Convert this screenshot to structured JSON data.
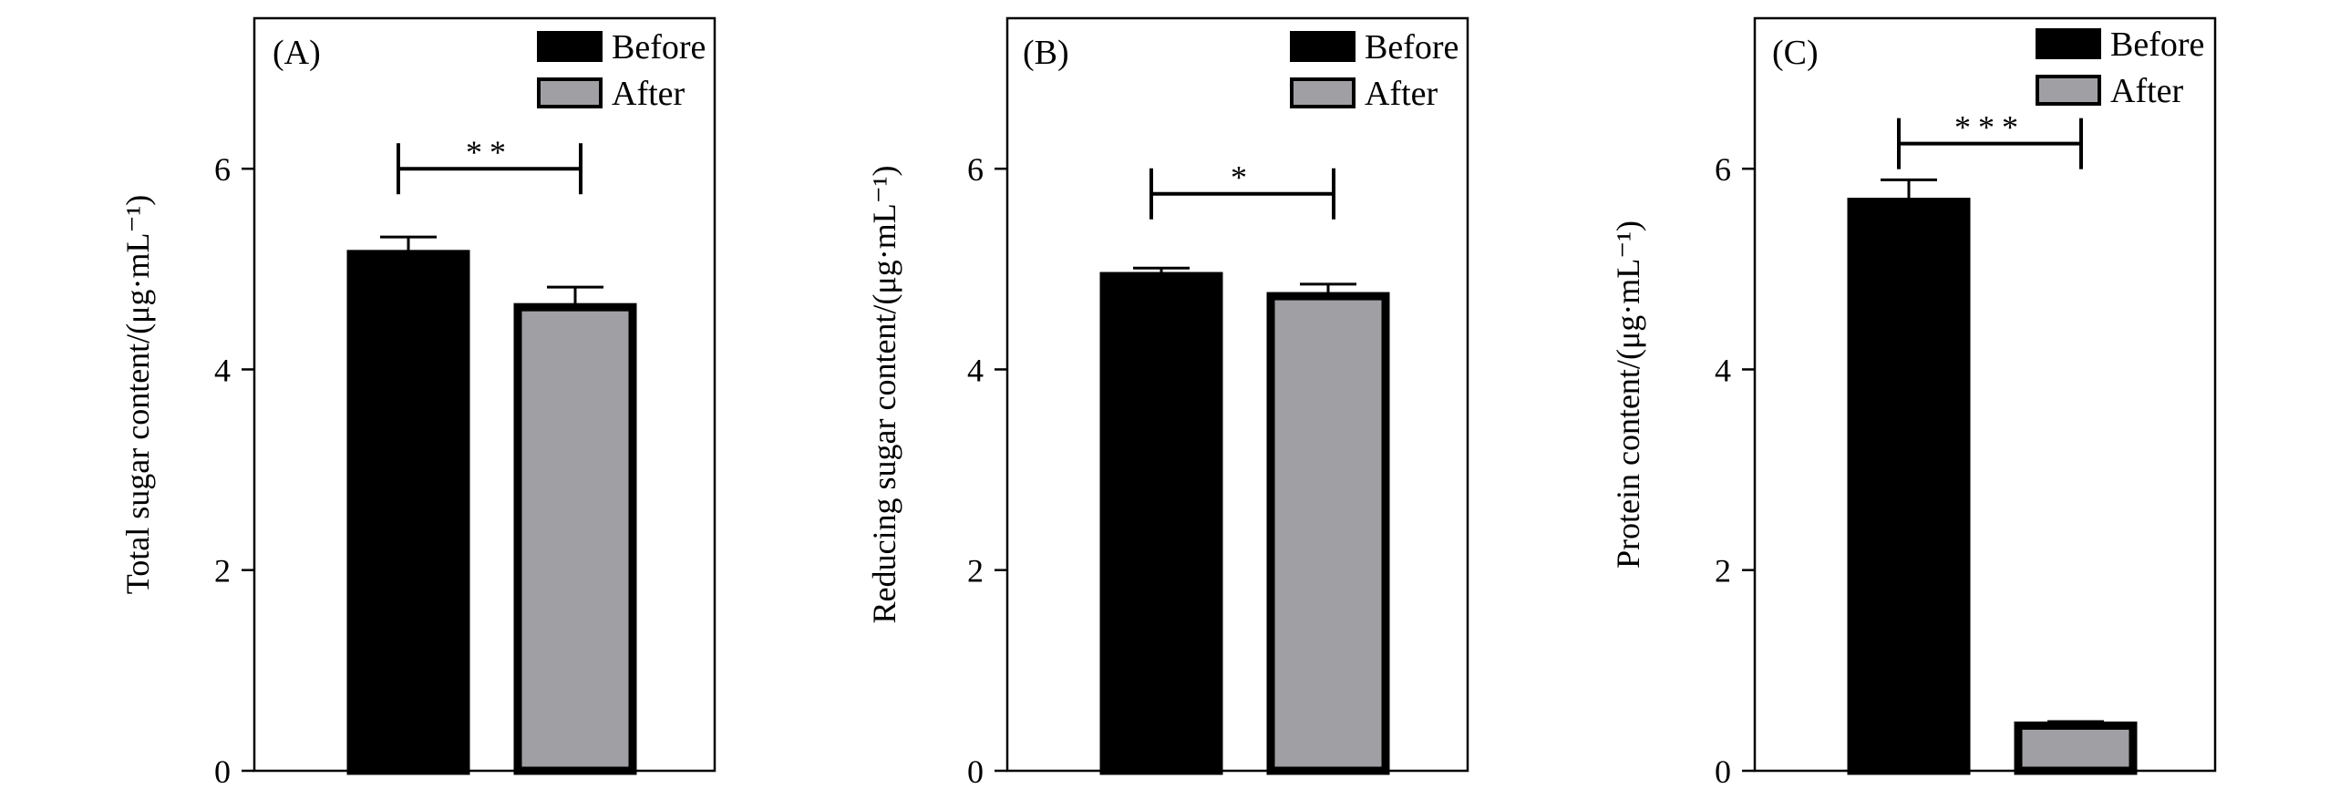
{
  "chart_data": [
    {
      "type": "bar",
      "panel_label": "(A)",
      "ylabel": "Total sugar content/(μg·mL⁻¹)",
      "ylim": [
        0,
        7.5
      ],
      "yticks": [
        "0",
        "2",
        "4",
        "6"
      ],
      "series": [
        {
          "name": "Before",
          "color": "#000000",
          "value": 5.15,
          "error": 0.17
        },
        {
          "name": "After",
          "color": "#a0a0a4",
          "value": 4.62,
          "error": 0.2
        }
      ],
      "significance": {
        "label": "**",
        "bracket_y": 6.0
      }
    },
    {
      "type": "bar",
      "panel_label": "(B)",
      "ylabel": "Reducing sugar content/(μg·mL⁻¹)",
      "ylim": [
        0,
        7.5
      ],
      "yticks": [
        "0",
        "2",
        "4",
        "6"
      ],
      "series": [
        {
          "name": "Before",
          "color": "#000000",
          "value": 4.93,
          "error": 0.08
        },
        {
          "name": "After",
          "color": "#a0a0a4",
          "value": 4.73,
          "error": 0.12
        }
      ],
      "significance": {
        "label": "*",
        "bracket_y": 5.75
      }
    },
    {
      "type": "bar",
      "panel_label": "(C)",
      "ylabel": "Protein content/(μg·mL⁻¹)",
      "ylim": [
        0,
        7.5
      ],
      "yticks": [
        "0",
        "2",
        "4",
        "6"
      ],
      "series": [
        {
          "name": "Before",
          "color": "#000000",
          "value": 5.67,
          "error": 0.22
        },
        {
          "name": "After",
          "color": "#a0a0a4",
          "value": 0.45,
          "error": 0.04
        }
      ],
      "significance": {
        "label": "***",
        "bracket_y": 6.25
      }
    }
  ]
}
